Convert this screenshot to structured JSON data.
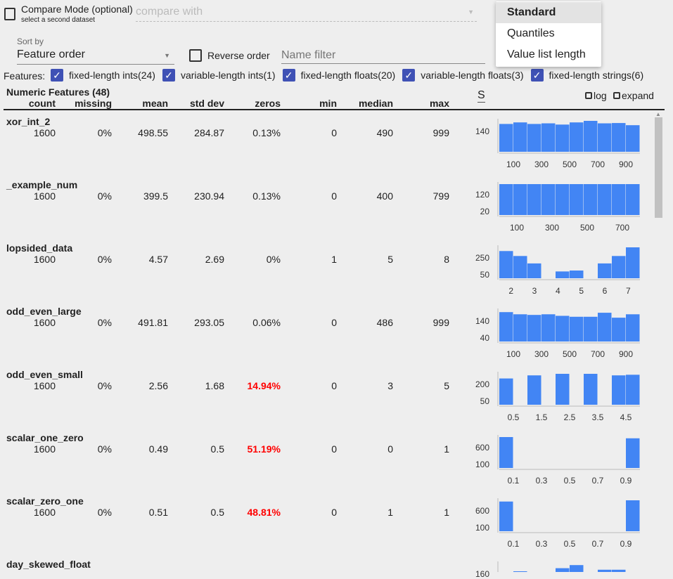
{
  "compare": {
    "label": "Compare Mode (optional)",
    "sub": "select a second dataset",
    "placeholder": "compare with"
  },
  "sort": {
    "label": "Sort by",
    "value": "Feature order",
    "reverse": "Reverse order",
    "filter_placeholder": "Name filter"
  },
  "features": {
    "label": "Features:",
    "items": [
      "fixed-length ints(24)",
      "variable-length ints(1)",
      "fixed-length floats(20)",
      "variable-length floats(3)",
      "fixed-length strings(6)"
    ]
  },
  "table": {
    "title": "Numeric Features (48)",
    "headers": [
      "count",
      "missing",
      "mean",
      "std dev",
      "zeros",
      "min",
      "median",
      "max"
    ],
    "log": "log",
    "expand": "expand",
    "chart_select_partial": "S"
  },
  "menu": {
    "items": [
      "Standard",
      "Quantiles",
      "Value list length"
    ],
    "selected": "Standard"
  },
  "colors": {
    "bar": "#4285f4",
    "accent": "#3f51b5",
    "warn": "#ff0000"
  },
  "rows": [
    {
      "name": "xor_int_2",
      "vals": [
        "1600",
        "0%",
        "498.55",
        "284.87",
        "0.13%",
        "0",
        "490",
        "999"
      ],
      "warn": false,
      "yt": [
        "140",
        ""
      ],
      "xt": [
        "100",
        "300",
        "500",
        "700",
        "900"
      ],
      "bars": [
        0.9,
        0.95,
        0.9,
        0.92,
        0.88,
        0.95,
        1,
        0.92,
        0.93,
        0.86
      ]
    },
    {
      "name": "_example_num",
      "vals": [
        "1600",
        "0%",
        "399.5",
        "230.94",
        "0.13%",
        "0",
        "400",
        "799"
      ],
      "warn": false,
      "yt": [
        "120",
        "20"
      ],
      "xt": [
        "100",
        "300",
        "500",
        "700"
      ],
      "bars": [
        1,
        1,
        1,
        1,
        1,
        1,
        1,
        1,
        1,
        1
      ]
    },
    {
      "name": "lopsided_data",
      "vals": [
        "1600",
        "0%",
        "4.57",
        "2.69",
        "0%",
        "1",
        "5",
        "8"
      ],
      "warn": false,
      "yt": [
        "250",
        "50"
      ],
      "xt": [
        "2",
        "3",
        "4",
        "5",
        "6",
        "7"
      ],
      "bars": [
        0.88,
        0.72,
        0.48,
        0,
        0.22,
        0.25,
        0,
        0.48,
        0.72,
        1
      ]
    },
    {
      "name": "odd_even_large",
      "vals": [
        "1600",
        "0%",
        "491.81",
        "293.05",
        "0.06%",
        "0",
        "486",
        "999"
      ],
      "warn": false,
      "yt": [
        "140",
        "40"
      ],
      "xt": [
        "100",
        "300",
        "500",
        "700",
        "900"
      ],
      "bars": [
        0.95,
        0.88,
        0.86,
        0.88,
        0.83,
        0.8,
        0.8,
        0.93,
        0.77,
        0.88
      ]
    },
    {
      "name": "odd_even_small",
      "vals": [
        "1600",
        "0%",
        "2.56",
        "1.68",
        "14.94%",
        "0",
        "3",
        "5"
      ],
      "warn": true,
      "yt": [
        "200",
        "50"
      ],
      "xt": [
        "0.5",
        "1.5",
        "2.5",
        "3.5",
        "4.5"
      ],
      "bars": [
        0.85,
        0,
        0.95,
        0,
        1,
        0,
        1,
        0,
        0.95,
        0.97
      ]
    },
    {
      "name": "scalar_one_zero",
      "vals": [
        "1600",
        "0%",
        "0.49",
        "0.5",
        "51.19%",
        "0",
        "0",
        "1"
      ],
      "warn": true,
      "yt": [
        "600",
        "100"
      ],
      "xt": [
        "0.1",
        "0.3",
        "0.5",
        "0.7",
        "0.9"
      ],
      "bars": [
        1,
        0,
        0,
        0,
        0,
        0,
        0,
        0,
        0,
        0.96
      ]
    },
    {
      "name": "scalar_zero_one",
      "vals": [
        "1600",
        "0%",
        "0.51",
        "0.5",
        "48.81%",
        "0",
        "1",
        "1"
      ],
      "warn": true,
      "yt": [
        "600",
        "100"
      ],
      "xt": [
        "0.1",
        "0.3",
        "0.5",
        "0.7",
        "0.9"
      ],
      "bars": [
        0.96,
        0,
        0,
        0,
        0,
        0,
        0,
        0,
        0,
        1
      ]
    },
    {
      "name": "day_skewed_float",
      "vals": [],
      "warn": false,
      "yt": [
        "160",
        ""
      ],
      "xt": [],
      "bars": [
        0.2,
        0.75,
        0.7,
        0.72,
        0.85,
        0.95,
        0.65,
        0.8,
        0.8,
        0
      ]
    }
  ]
}
